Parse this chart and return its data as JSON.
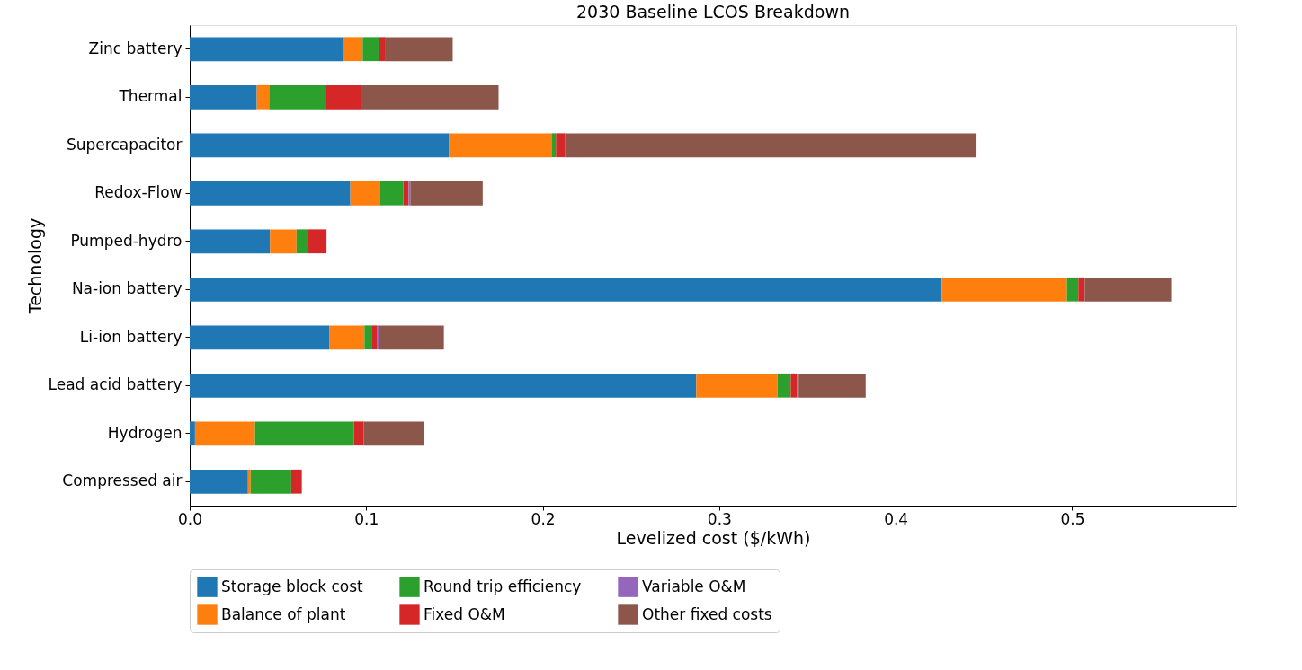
{
  "chart_data": {
    "type": "bar",
    "orientation": "horizontal",
    "stacked": true,
    "title": "2030 Baseline LCOS Breakdown",
    "xlabel": "Levelized cost ($/kWh)",
    "ylabel": "Technology",
    "categories": [
      "Zinc battery",
      "Thermal",
      "Supercapacitor",
      "Redox-Flow",
      "Pumped-hydro",
      "Na-ion battery",
      "Li-ion battery",
      "Lead acid battery",
      "Hydrogen",
      "Compressed air"
    ],
    "series": [
      {
        "name": "Storage block cost",
        "color": "#1f77b4",
        "values": [
          0.087,
          0.038,
          0.147,
          0.091,
          0.0455,
          0.426,
          0.079,
          0.287,
          0.003,
          0.033
        ]
      },
      {
        "name": "Balance of plant",
        "color": "#ff7f0e",
        "values": [
          0.011,
          0.007,
          0.058,
          0.017,
          0.015,
          0.071,
          0.02,
          0.046,
          0.034,
          0.0015
        ]
      },
      {
        "name": "Round trip efficiency",
        "color": "#2ca02c",
        "values": [
          0.009,
          0.032,
          0.0025,
          0.013,
          0.0065,
          0.0065,
          0.004,
          0.0075,
          0.056,
          0.023
        ]
      },
      {
        "name": "Fixed O&M",
        "color": "#d62728",
        "values": [
          0.004,
          0.02,
          0.0053,
          0.003,
          0.0105,
          0.0036,
          0.003,
          0.0035,
          0.0055,
          0.006
        ]
      },
      {
        "name": "Variable O&M",
        "color": "#9467bd",
        "values": [
          null,
          null,
          null,
          0.001,
          null,
          null,
          0.001,
          0.001,
          null,
          null
        ]
      },
      {
        "name": "Other fixed costs",
        "color": "#8c564b",
        "values": [
          0.038,
          0.078,
          0.233,
          0.041,
          null,
          0.049,
          0.037,
          0.038,
          0.034,
          null
        ]
      }
    ],
    "xlim": [
      0,
      0.593
    ],
    "xticks": [
      {
        "value": 0,
        "label": "0.0"
      },
      0.1,
      0.2,
      0.3,
      0.4,
      0.5
    ],
    "grid": false,
    "legend": "bottom"
  }
}
